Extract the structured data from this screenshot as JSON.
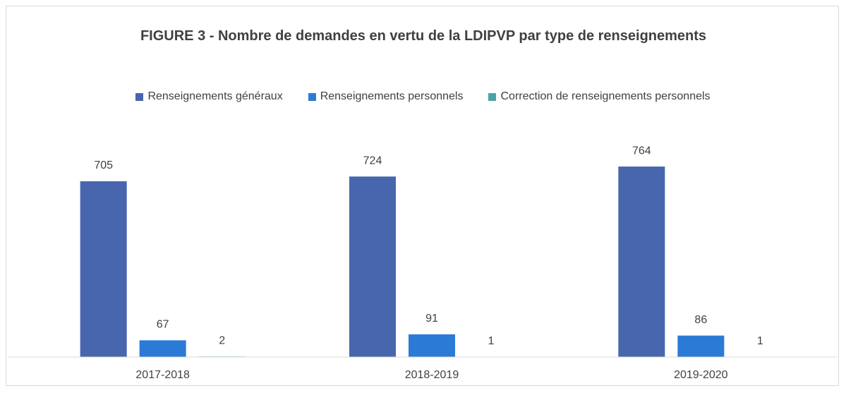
{
  "chart_data": {
    "type": "bar",
    "title": "FIGURE 3 - Nombre de demandes en vertu de la LDIPVP par type de renseignements",
    "categories": [
      "2017-2018",
      "2018-2019",
      "2019-2020"
    ],
    "series": [
      {
        "name": "Renseignements généraux",
        "color": "#4866ad",
        "values": [
          705,
          724,
          764
        ]
      },
      {
        "name": "Renseignements personnels",
        "color": "#2b7bd6",
        "values": [
          67,
          91,
          86
        ]
      },
      {
        "name": "Correction de renseignements personnels",
        "color": "#4aa3a6",
        "values": [
          2,
          1,
          1
        ]
      }
    ],
    "ylim": [
      0,
      900
    ],
    "legend": "top"
  }
}
